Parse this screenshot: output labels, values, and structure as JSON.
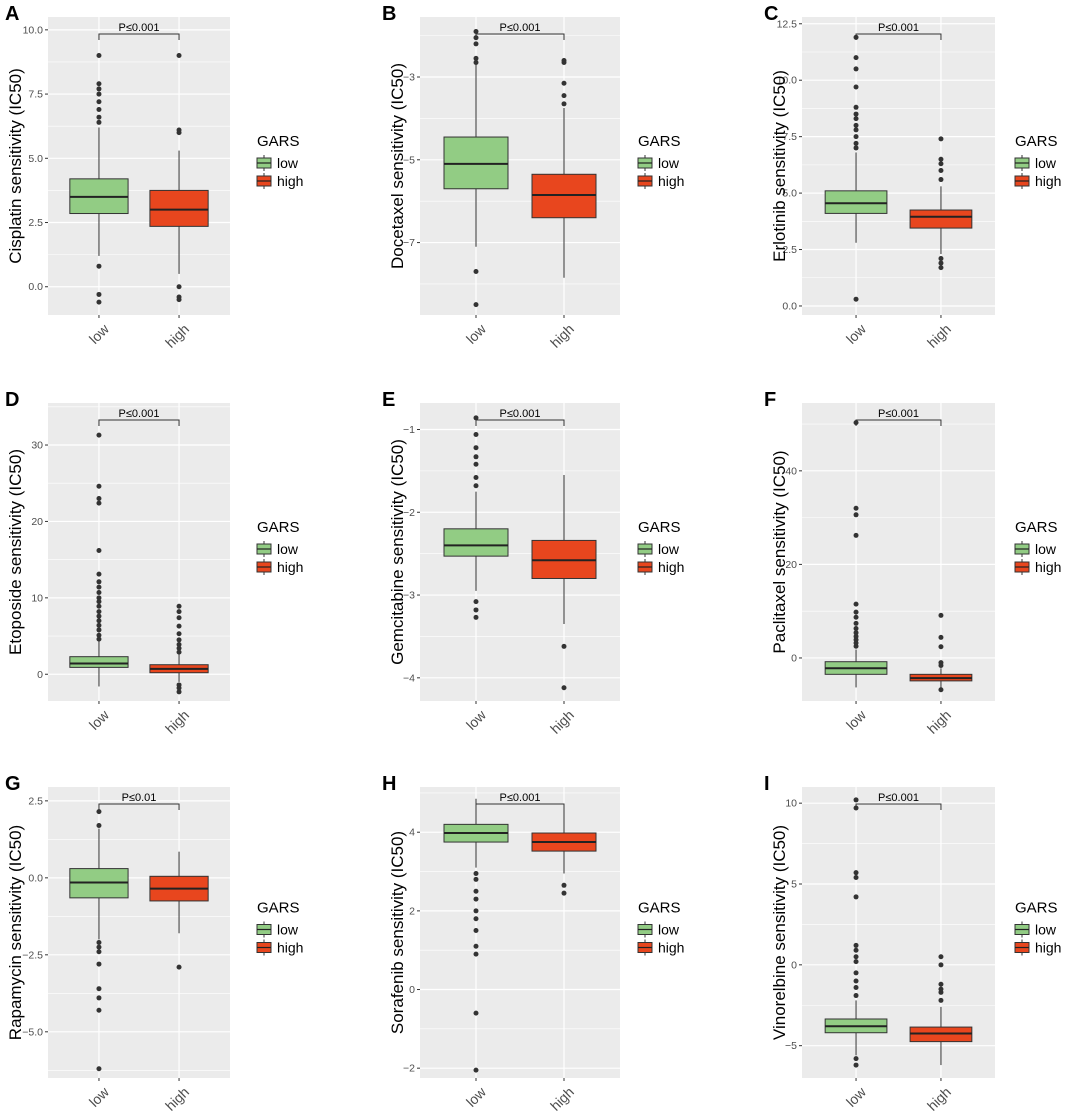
{
  "chart_data": [
    {
      "type": "box",
      "panel": "A",
      "ylabel": "Cisplatin sensitivity (IC50)",
      "ylim": [
        -1.1,
        10.5
      ],
      "yticks": [
        0,
        2.5,
        5,
        7.5,
        10
      ],
      "ytick_labels": [
        "0.0",
        "2.5",
        "5.0",
        "7.5",
        "10.0"
      ],
      "categories": [
        "low",
        "high"
      ],
      "pvalue": "P≤0.001",
      "legend": {
        "title": "GARS",
        "items": [
          "low",
          "high"
        ]
      },
      "boxes": [
        {
          "q1": 2.85,
          "median": 3.5,
          "q3": 4.2,
          "whisker_low": 1.2,
          "whisker_high": 6.2,
          "outliers": [
            -0.6,
            -0.3,
            0.8,
            6.4,
            6.6,
            6.9,
            7.2,
            7.5,
            7.7,
            7.9,
            9.0
          ]
        },
        {
          "q1": 2.35,
          "median": 3.0,
          "q3": 3.75,
          "whisker_low": 0.5,
          "whisker_high": 5.3,
          "outliers": [
            -0.5,
            -0.4,
            0.0,
            6.0,
            6.1,
            9.0
          ]
        }
      ]
    },
    {
      "type": "box",
      "panel": "B",
      "ylabel": "Docetaxel sensitivity (IC50)",
      "ylim": [
        -8.75,
        -1.55
      ],
      "yticks": [
        -3,
        -5,
        -7
      ],
      "ytick_labels": [
        "−3",
        "−5",
        "−7"
      ],
      "categories": [
        "low",
        "high"
      ],
      "pvalue": "P≤0.001",
      "legend": {
        "title": "GARS",
        "items": [
          "low",
          "high"
        ]
      },
      "boxes": [
        {
          "q1": -5.7,
          "median": -5.1,
          "q3": -4.45,
          "whisker_low": -7.1,
          "whisker_high": -2.7,
          "outliers": [
            -8.5,
            -7.7,
            -2.65,
            -2.55,
            -2.2,
            -2.05,
            -1.9
          ]
        },
        {
          "q1": -6.4,
          "median": -5.85,
          "q3": -5.35,
          "whisker_low": -7.85,
          "whisker_high": -3.75,
          "outliers": [
            -3.65,
            -3.45,
            -3.15,
            -2.65,
            -2.6
          ]
        }
      ]
    },
    {
      "type": "box",
      "panel": "C",
      "ylabel": "Erlotinib sensitivity (IC50)",
      "ylim": [
        -0.4,
        12.8
      ],
      "yticks": [
        0,
        2.5,
        5,
        7.5,
        10,
        12.5
      ],
      "ytick_labels": [
        "0.0",
        "2.5",
        "5.0",
        "7.5",
        "10.0",
        "12.5"
      ],
      "categories": [
        "low",
        "high"
      ],
      "pvalue": "P≤0.001",
      "legend": {
        "title": "GARS",
        "items": [
          "low",
          "high"
        ]
      },
      "boxes": [
        {
          "q1": 4.1,
          "median": 4.55,
          "q3": 5.1,
          "whisker_low": 2.8,
          "whisker_high": 6.8,
          "outliers": [
            0.3,
            7.0,
            7.2,
            7.5,
            7.8,
            8.0,
            8.3,
            8.5,
            8.8,
            9.7,
            10.5,
            11.0,
            11.9
          ]
        },
        {
          "q1": 3.45,
          "median": 3.95,
          "q3": 4.25,
          "whisker_low": 2.3,
          "whisker_high": 5.3,
          "outliers": [
            1.7,
            1.9,
            2.1,
            5.6,
            6.0,
            6.3,
            6.5,
            7.4
          ]
        }
      ]
    },
    {
      "type": "box",
      "panel": "D",
      "ylabel": "Etoposide sensitivity (IC50)",
      "ylim": [
        -3.5,
        35.5
      ],
      "yticks": [
        0,
        10,
        20,
        30
      ],
      "ytick_labels": [
        "0",
        "10",
        "20",
        "30"
      ],
      "categories": [
        "low",
        "high"
      ],
      "pvalue": "P≤0.001",
      "legend": {
        "title": "GARS",
        "items": [
          "low",
          "high"
        ]
      },
      "boxes": [
        {
          "q1": 0.9,
          "median": 1.4,
          "q3": 2.3,
          "whisker_low": -1.6,
          "whisker_high": 4.3,
          "outliers": [
            4.6,
            5.1,
            5.8,
            6.4,
            7.0,
            7.6,
            8.2,
            8.9,
            9.5,
            10.0,
            10.7,
            11.4,
            12.1,
            13.1,
            16.2,
            22.4,
            23.0,
            24.6,
            31.3
          ]
        },
        {
          "q1": 0.2,
          "median": 0.7,
          "q3": 1.25,
          "whisker_low": -1.0,
          "whisker_high": 2.6,
          "outliers": [
            -2.3,
            -1.8,
            -1.4,
            2.9,
            3.4,
            3.9,
            4.5,
            5.3,
            6.3,
            7.4,
            8.2,
            8.9
          ]
        }
      ]
    },
    {
      "type": "box",
      "panel": "E",
      "ylabel": "Gemcitabine sensitivity (IC50)",
      "ylim": [
        -4.28,
        -0.68
      ],
      "yticks": [
        -1,
        -2,
        -3,
        -4
      ],
      "ytick_labels": [
        "−1",
        "−2",
        "−3",
        "−4"
      ],
      "categories": [
        "low",
        "high"
      ],
      "pvalue": "P≤0.001",
      "legend": {
        "title": "GARS",
        "items": [
          "low",
          "high"
        ]
      },
      "boxes": [
        {
          "q1": -2.53,
          "median": -2.4,
          "q3": -2.2,
          "whisker_low": -2.95,
          "whisker_high": -1.75,
          "outliers": [
            -3.27,
            -3.18,
            -3.08,
            -1.68,
            -1.58,
            -1.42,
            -1.33,
            -1.22,
            -1.06,
            -0.86
          ]
        },
        {
          "q1": -2.8,
          "median": -2.58,
          "q3": -2.34,
          "whisker_low": -3.35,
          "whisker_high": -1.55,
          "outliers": [
            -4.12,
            -3.62
          ]
        }
      ]
    },
    {
      "type": "box",
      "panel": "F",
      "ylabel": "Paclitaxel sensitivity (IC50)",
      "ylim": [
        -9.2,
        54.5
      ],
      "yticks": [
        0,
        20,
        40
      ],
      "ytick_labels": [
        "0",
        "20",
        "40"
      ],
      "categories": [
        "low",
        "high"
      ],
      "pvalue": "P≤0.001",
      "legend": {
        "title": "GARS",
        "items": [
          "low",
          "high"
        ]
      },
      "boxes": [
        {
          "q1": -3.5,
          "median": -2.2,
          "q3": -0.8,
          "whisker_low": -6.3,
          "whisker_high": 1.8,
          "outliers": [
            2.5,
            3.2,
            3.9,
            4.6,
            5.4,
            6.3,
            7.4,
            8.7,
            9.8,
            11.5,
            26.2,
            30.6,
            32.0,
            50.3
          ]
        },
        {
          "q1": -4.9,
          "median": -4.3,
          "q3": -3.5,
          "whisker_low": -6.6,
          "whisker_high": -2.2,
          "outliers": [
            -6.8,
            -1.6,
            -1.0,
            2.4,
            4.4,
            9.1
          ]
        }
      ]
    },
    {
      "type": "box",
      "panel": "G",
      "ylabel": "Rapamycin sensitivity (IC50)",
      "ylim": [
        -6.5,
        2.95
      ],
      "yticks": [
        2.5,
        0,
        -2.5,
        -5
      ],
      "ytick_labels": [
        "2.5",
        "0.0",
        "−2.5",
        "−5.0"
      ],
      "categories": [
        "low",
        "high"
      ],
      "pvalue": "P≤0.01",
      "legend": {
        "title": "GARS",
        "items": [
          "low",
          "high"
        ]
      },
      "boxes": [
        {
          "q1": -0.65,
          "median": -0.15,
          "q3": 0.3,
          "whisker_low": -2.0,
          "whisker_high": 1.6,
          "outliers": [
            -6.2,
            -4.3,
            -3.9,
            -3.6,
            -2.8,
            -2.4,
            -2.25,
            -2.1,
            1.7,
            2.15
          ]
        },
        {
          "q1": -0.75,
          "median": -0.35,
          "q3": 0.05,
          "whisker_low": -1.8,
          "whisker_high": 0.85,
          "outliers": [
            -2.9
          ]
        }
      ]
    },
    {
      "type": "box",
      "panel": "H",
      "ylabel": "Sorafenib sensitivity (IC50)",
      "ylim": [
        -2.25,
        5.15
      ],
      "yticks": [
        4,
        2,
        0,
        -2
      ],
      "ytick_labels": [
        "4",
        "2",
        "0",
        "−2"
      ],
      "categories": [
        "low",
        "high"
      ],
      "pvalue": "P≤0.001",
      "legend": {
        "title": "GARS",
        "items": [
          "low",
          "high"
        ]
      },
      "boxes": [
        {
          "q1": 3.75,
          "median": 3.98,
          "q3": 4.2,
          "whisker_low": 3.1,
          "whisker_high": 4.85,
          "outliers": [
            -2.05,
            -0.6,
            0.9,
            1.1,
            1.5,
            1.8,
            2.0,
            2.3,
            2.5,
            2.8,
            2.95
          ]
        },
        {
          "q1": 3.52,
          "median": 3.75,
          "q3": 3.98,
          "whisker_low": 2.95,
          "whisker_high": 4.7,
          "outliers": [
            2.45,
            2.65
          ]
        }
      ]
    },
    {
      "type": "box",
      "panel": "I",
      "ylabel": "Vinorelbine sensitivity (IC50)",
      "ylim": [
        -7.0,
        11.0
      ],
      "yticks": [
        10,
        5,
        0,
        -5
      ],
      "ytick_labels": [
        "10",
        "5",
        "0",
        "−5"
      ],
      "categories": [
        "low",
        "high"
      ],
      "pvalue": "P≤0.001",
      "legend": {
        "title": "GARS",
        "items": [
          "low",
          "high"
        ]
      },
      "boxes": [
        {
          "q1": -4.2,
          "median": -3.8,
          "q3": -3.35,
          "whisker_low": -5.6,
          "whisker_high": -2.2,
          "outliers": [
            -6.2,
            -5.8,
            -1.9,
            -1.4,
            -1.0,
            -0.5,
            0.2,
            0.5,
            0.9,
            1.2,
            4.2,
            5.4,
            5.7,
            9.7,
            10.2
          ]
        },
        {
          "q1": -4.75,
          "median": -4.25,
          "q3": -3.85,
          "whisker_low": -6.2,
          "whisker_high": -2.6,
          "outliers": [
            -2.2,
            -1.7,
            -1.5,
            -1.2,
            0.0,
            0.5
          ]
        }
      ]
    }
  ],
  "colors": {
    "low_fill": "#92cc84",
    "high_fill": "#e8461e",
    "panel_bg": "#ebebeb",
    "grid": "#ffffff"
  }
}
